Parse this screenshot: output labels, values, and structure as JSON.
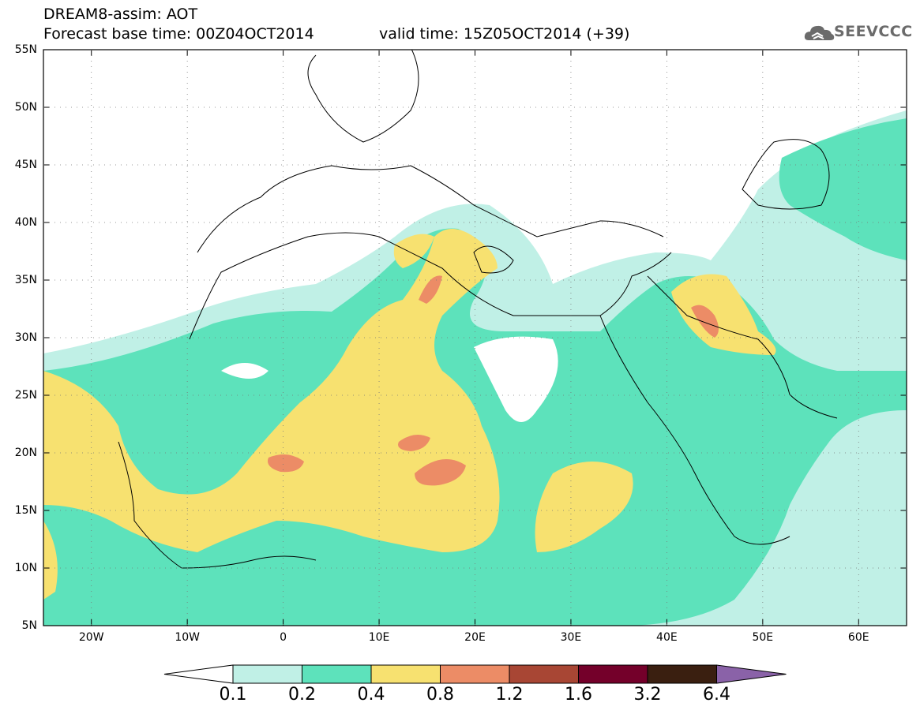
{
  "header": {
    "title_line1": "DREAM8-assim: AOT",
    "base_time": "Forecast base time: 00Z04OCT2014",
    "valid_time": "valid time: 15Z05OCT2014 (+39)",
    "logo_text": "SEEVCCC",
    "logo_icon": "cloud-icon"
  },
  "map": {
    "lat_labels": [
      "55N",
      "50N",
      "45N",
      "40N",
      "35N",
      "30N",
      "25N",
      "20N",
      "15N",
      "10N",
      "5N"
    ],
    "lon_labels": [
      "20W",
      "10W",
      "0",
      "10E",
      "20E",
      "30E",
      "40E",
      "50E",
      "60E"
    ],
    "lat_range": [
      5,
      55
    ],
    "lon_range": [
      -25,
      65
    ]
  },
  "legend": {
    "labels": [
      "0.1",
      "0.2",
      "0.4",
      "0.8",
      "1.2",
      "1.6",
      "3.2",
      "6.4"
    ],
    "colors": [
      "#ffffff",
      "#c0f0e6",
      "#5de2bb",
      "#f7e170",
      "#ec8c66",
      "#a84634",
      "#74002a",
      "#3a1f10",
      "#8a62a8"
    ]
  }
}
